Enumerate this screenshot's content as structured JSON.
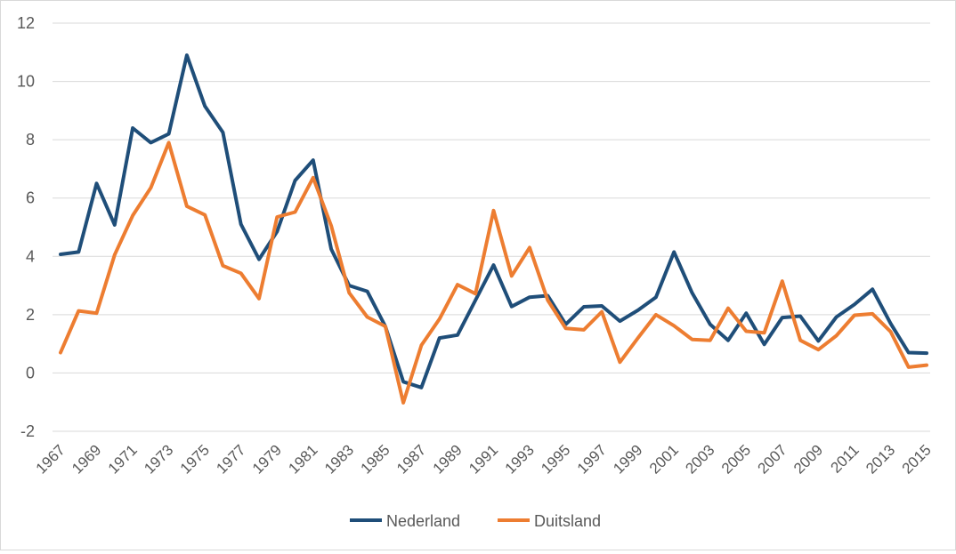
{
  "chart_data": {
    "type": "line",
    "title": "",
    "xlabel": "",
    "ylabel": "",
    "x": [
      1967,
      1968,
      1969,
      1970,
      1971,
      1972,
      1973,
      1974,
      1975,
      1976,
      1977,
      1978,
      1979,
      1980,
      1981,
      1982,
      1983,
      1984,
      1985,
      1986,
      1987,
      1988,
      1989,
      1990,
      1991,
      1992,
      1993,
      1994,
      1995,
      1996,
      1997,
      1998,
      1999,
      2000,
      2001,
      2002,
      2003,
      2004,
      2005,
      2006,
      2007,
      2008,
      2009,
      2010,
      2011,
      2012,
      2013,
      2014,
      2015
    ],
    "x_tick_labels": [
      "1967",
      "1969",
      "1971",
      "1973",
      "1975",
      "1977",
      "1979",
      "1981",
      "1983",
      "1985",
      "1987",
      "1989",
      "1991",
      "1993",
      "1995",
      "1997",
      "1999",
      "2001",
      "2003",
      "2005",
      "2007",
      "2009",
      "2011",
      "2013",
      "2015"
    ],
    "ylim": [
      -2,
      12
    ],
    "y_ticks": [
      "-2",
      "0",
      "2",
      "4",
      "6",
      "8",
      "10",
      "12"
    ],
    "grid": "horizontal",
    "legend_position": "bottom",
    "series": [
      {
        "name": "Nederland",
        "color": "#1f4e79",
        "values": [
          4.07,
          4.15,
          6.5,
          5.08,
          8.4,
          7.9,
          8.2,
          10.9,
          9.15,
          8.25,
          5.1,
          3.9,
          4.85,
          6.6,
          7.3,
          4.25,
          3.0,
          2.8,
          1.6,
          -0.3,
          -0.5,
          1.2,
          1.3,
          2.5,
          3.7,
          2.28,
          2.6,
          2.65,
          1.67,
          2.27,
          2.3,
          1.78,
          2.15,
          2.6,
          4.15,
          2.75,
          1.67,
          1.12,
          2.05,
          0.98,
          1.9,
          1.95,
          1.1,
          1.92,
          2.35,
          2.87,
          1.7,
          0.7,
          0.68
        ]
      },
      {
        "name": "Duitsland",
        "color": "#ed7d31",
        "values": [
          0.7,
          2.13,
          2.05,
          4.05,
          5.4,
          6.35,
          7.9,
          5.72,
          5.42,
          3.68,
          3.42,
          2.55,
          5.35,
          5.52,
          6.7,
          5.05,
          2.75,
          1.92,
          1.6,
          -1.02,
          0.95,
          1.85,
          3.03,
          2.72,
          5.57,
          3.33,
          4.3,
          2.5,
          1.53,
          1.48,
          2.1,
          0.37,
          1.2,
          2.0,
          1.62,
          1.15,
          1.12,
          2.22,
          1.43,
          1.38,
          3.15,
          1.12,
          0.8,
          1.28,
          1.98,
          2.03,
          1.42,
          0.2,
          0.27
        ]
      }
    ]
  }
}
